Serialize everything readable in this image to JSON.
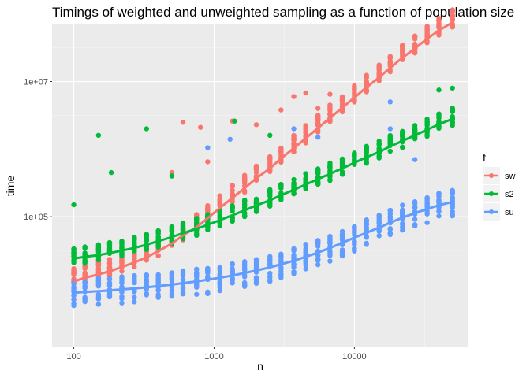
{
  "chart_data": {
    "type": "scatter",
    "title": "Timings of weighted and unweighted sampling as a function of population size",
    "xlabel": "n",
    "ylabel": "time",
    "x_scale": "log10",
    "y_scale": "log10",
    "xlim": [
      70,
      65000
    ],
    "ylim": [
      1200,
      70000000
    ],
    "x_ticks": [
      {
        "value": 100,
        "label": "100"
      },
      {
        "value": 1000,
        "label": "1000"
      },
      {
        "value": 10000,
        "label": "10000"
      }
    ],
    "y_ticks": [
      {
        "value": 100000,
        "label": "1e+05"
      },
      {
        "value": 10000000,
        "label": "1e+07"
      }
    ],
    "grid": true,
    "legend": {
      "title": "f",
      "position": "right",
      "entries": [
        {
          "name": "sw",
          "color": "#f8766d"
        },
        {
          "name": "s2",
          "color": "#00ba38"
        },
        {
          "name": "su",
          "color": "#619cff"
        }
      ]
    },
    "background": "#ebebeb",
    "series": [
      {
        "name": "sw",
        "color": "#f8766d",
        "x": [
          100,
          120,
          150,
          180,
          220,
          270,
          330,
          400,
          500,
          600,
          750,
          900,
          1100,
          1350,
          1650,
          2000,
          2500,
          3000,
          3700,
          4500,
          5500,
          6700,
          8200,
          10000,
          12200,
          15000,
          18000,
          22000,
          27000,
          33000,
          40000,
          50000
        ],
        "y": [
          11000,
          12500,
          14000,
          15500,
          18000,
          21000,
          25000,
          31000,
          40000,
          53000,
          70000,
          95000,
          135000,
          190000,
          265000,
          370000,
          520000,
          730000,
          1030000,
          1450000,
          2050000,
          2900000,
          4100000,
          5800000,
          8200000,
          11500000,
          16000000,
          22500000,
          31000000,
          43000000,
          57000000,
          75000000
        ],
        "outliers": [
          {
            "x": 600,
            "y": 2500000
          },
          {
            "x": 800,
            "y": 2100000
          },
          {
            "x": 1350,
            "y": 2600000
          },
          {
            "x": 2000,
            "y": 2300000
          },
          {
            "x": 3000,
            "y": 3800000
          },
          {
            "x": 3700,
            "y": 6000000
          },
          {
            "x": 4500,
            "y": 6800000
          },
          {
            "x": 5500,
            "y": 4000000
          },
          {
            "x": 6700,
            "y": 6500000
          },
          {
            "x": 500,
            "y": 450000
          },
          {
            "x": 900,
            "y": 650000
          }
        ]
      },
      {
        "name": "s2",
        "color": "#00ba38",
        "x": [
          100,
          120,
          150,
          180,
          220,
          270,
          330,
          400,
          500,
          600,
          750,
          900,
          1100,
          1350,
          1650,
          2000,
          2500,
          3000,
          3700,
          4500,
          5500,
          6700,
          8200,
          10000,
          12200,
          15000,
          18000,
          22000,
          27000,
          33000,
          40000,
          50000
        ],
        "y": [
          24000,
          25500,
          27000,
          29000,
          31500,
          34500,
          38500,
          43500,
          50000,
          57000,
          66000,
          76000,
          89000,
          105000,
          124000,
          147000,
          175000,
          208000,
          250000,
          300000,
          360000,
          430000,
          520000,
          630000,
          760000,
          910000,
          1100000,
          1320000,
          1600000,
          1930000,
          2330000,
          2800000
        ],
        "outliers": [
          {
            "x": 150,
            "y": 1600000
          },
          {
            "x": 185,
            "y": 450000
          },
          {
            "x": 330,
            "y": 2000000
          },
          {
            "x": 500,
            "y": 400000
          },
          {
            "x": 1400,
            "y": 2600000
          },
          {
            "x": 100,
            "y": 150000
          },
          {
            "x": 40000,
            "y": 7500000
          },
          {
            "x": 50000,
            "y": 8000000
          },
          {
            "x": 2500,
            "y": 1600000
          }
        ]
      },
      {
        "name": "su",
        "color": "#619cff",
        "x": [
          100,
          120,
          150,
          180,
          220,
          270,
          330,
          400,
          500,
          600,
          750,
          900,
          1100,
          1350,
          1650,
          2000,
          2500,
          3000,
          3700,
          4500,
          5500,
          6700,
          8200,
          10000,
          12200,
          15000,
          18000,
          22000,
          27000,
          33000,
          40000,
          50000
        ],
        "y": [
          7500,
          7700,
          7900,
          8100,
          8400,
          8700,
          9000,
          9400,
          9900,
          10400,
          11000,
          11700,
          12500,
          13500,
          14700,
          16000,
          17800,
          19800,
          22300,
          25500,
          29500,
          34500,
          41000,
          49000,
          58000,
          69000,
          82000,
          97000,
          113000,
          130000,
          148000,
          165000
        ],
        "outliers": [
          {
            "x": 1300,
            "y": 1400000
          },
          {
            "x": 900,
            "y": 1050000
          },
          {
            "x": 500,
            "y": 400000
          },
          {
            "x": 18000,
            "y": 5000000
          },
          {
            "x": 18000,
            "y": 2000000
          },
          {
            "x": 27000,
            "y": 700000
          },
          {
            "x": 33000,
            "y": 1800000
          },
          {
            "x": 5500,
            "y": 1500000
          },
          {
            "x": 3700,
            "y": 2000000
          }
        ]
      }
    ]
  }
}
